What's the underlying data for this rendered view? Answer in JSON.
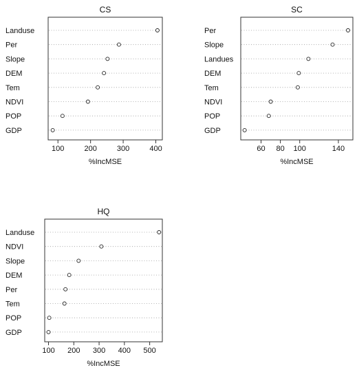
{
  "chart_data": [
    {
      "type": "scatter",
      "title": "CS",
      "xlabel": "%IncMSE",
      "ylabel": "",
      "categories": [
        "Landuse",
        "Per",
        "Slope",
        "DEM",
        "Tem",
        "NDVI",
        "POP",
        "GDP"
      ],
      "values": [
        405,
        287,
        252,
        241,
        222,
        192,
        114,
        84
      ],
      "xticks": [
        "100",
        "200",
        "300",
        "400"
      ],
      "xtick_values": [
        100,
        200,
        300,
        400
      ],
      "xlim": [
        70,
        420
      ],
      "grid": "dotted horizontal"
    },
    {
      "type": "scatter",
      "title": "SC",
      "xlabel": "%IncMSE",
      "ylabel": "",
      "categories": [
        "Per",
        "Slope",
        "Landues",
        "DEM",
        "Tem",
        "NDVI",
        "POP",
        "GDP"
      ],
      "values": [
        150,
        134,
        109,
        99,
        98,
        70,
        68,
        43
      ],
      "xticks": [
        "60",
        "80",
        "100",
        "140"
      ],
      "xtick_values": [
        60,
        80,
        100,
        140
      ],
      "xlim": [
        39,
        155
      ],
      "grid": "dotted horizontal"
    },
    {
      "type": "scatter",
      "title": "HQ",
      "xlabel": "%IncMSE",
      "ylabel": "",
      "categories": [
        "Landuse",
        "NDVI",
        "Slope",
        "DEM",
        "Per",
        "Tem",
        "POP",
        "GDP"
      ],
      "values": [
        537,
        309,
        219,
        182,
        167,
        163,
        103,
        100
      ],
      "xticks": [
        "100",
        "200",
        "300",
        "400",
        "500"
      ],
      "xtick_values": [
        100,
        200,
        300,
        400,
        500
      ],
      "xlim": [
        85,
        550
      ],
      "grid": "dotted horizontal"
    }
  ]
}
